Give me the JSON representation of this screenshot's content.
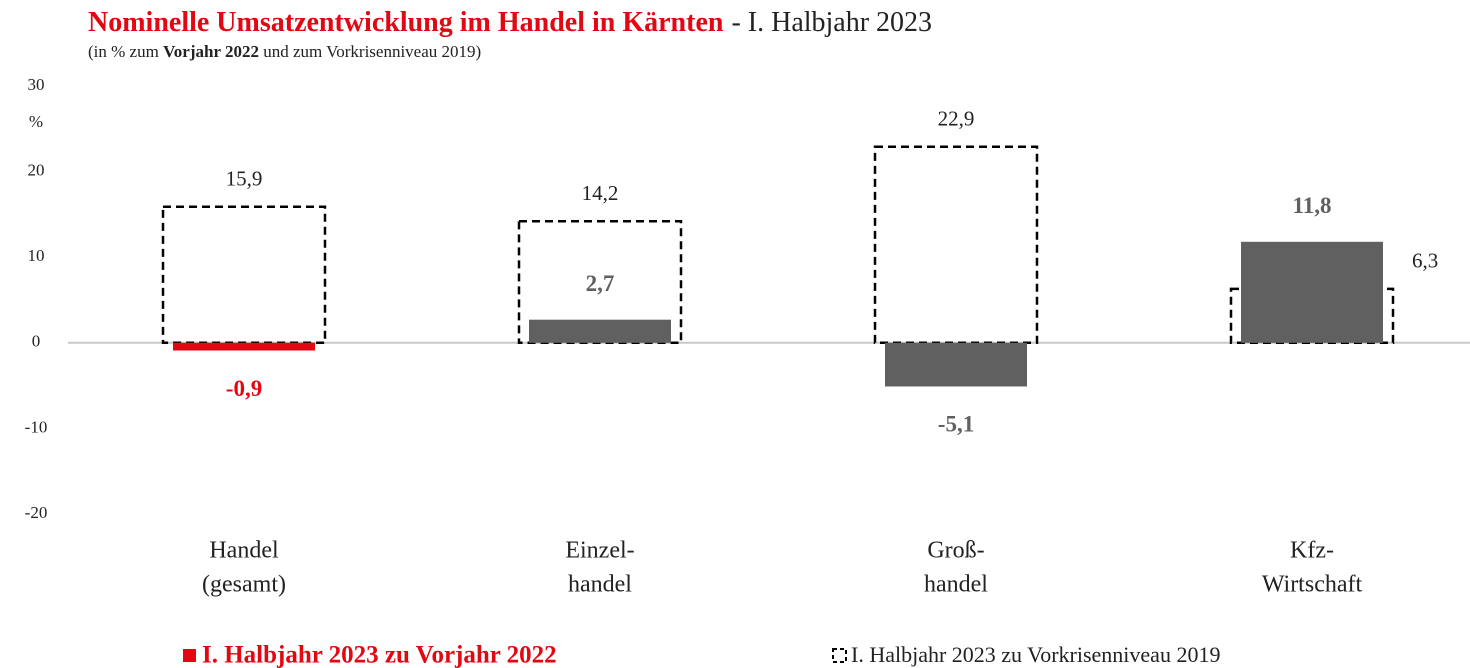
{
  "chart_data": {
    "type": "bar",
    "title": "Nominelle Umsatzentwicklung im Handel in Kärnten",
    "title_suffix": "- I. Halbjahr 2023",
    "subtitle": [
      "(in % zum ",
      "Vorjahr 2022",
      " und zum Vorkrisenniveau 2019)"
    ],
    "ylabel": "%",
    "categories": [
      [
        "Handel",
        "(gesamt)"
      ],
      [
        "Einzel-",
        "handel"
      ],
      [
        "Groß-",
        "handel"
      ],
      [
        "Kfz-",
        "Wirtschaft"
      ]
    ],
    "series": [
      {
        "name": "I. Halbjahr 2023 zu Vorjahr 2022",
        "color": "#e30613",
        "style": "filled",
        "colors": [
          "#e30613",
          "#606060",
          "#606060",
          "#606060"
        ],
        "values": [
          -0.9,
          2.7,
          -5.1,
          11.8
        ],
        "value_labels": [
          "-0,9",
          "2,7",
          "-5,1",
          "11,8"
        ]
      },
      {
        "name": "I. Halbjahr 2023 zu Vorkrisenniveau 2019",
        "color": "#000000",
        "style": "dashed",
        "values": [
          15.9,
          14.2,
          22.9,
          6.3
        ],
        "value_labels": [
          "15,9",
          "14,2",
          "22,9",
          "6,3"
        ]
      }
    ],
    "ylim": [
      -20,
      30
    ],
    "yticks": [
      30,
      20,
      10,
      0,
      -10,
      -20
    ]
  }
}
